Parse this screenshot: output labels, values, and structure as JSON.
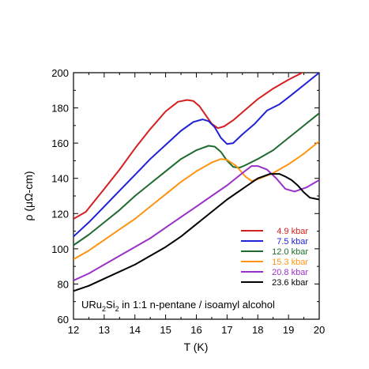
{
  "chart_data": {
    "type": "line",
    "title": "",
    "xlabel": "T (K)",
    "ylabel": "ρ (μΩ-cm)",
    "xlim": [
      12,
      20
    ],
    "ylim": [
      60,
      200
    ],
    "xticks": [
      12,
      13,
      14,
      15,
      16,
      17,
      18,
      19,
      20
    ],
    "yticks": [
      60,
      80,
      100,
      120,
      140,
      160,
      180,
      200
    ],
    "grid": false,
    "legend_position": "lower-right",
    "annotation": {
      "base": "URu",
      "sub1": "2",
      "mid": "Si",
      "sub2": "2",
      "rest": " in 1:1 n-pentane / isoamyl alcohol"
    },
    "series": [
      {
        "name": "4.9 kbar",
        "color": "#d62020",
        "x": [
          12.0,
          12.4,
          13.0,
          13.5,
          14.0,
          14.5,
          15.0,
          15.4,
          15.7,
          15.9,
          16.1,
          16.3,
          16.5,
          16.7,
          16.9,
          17.2,
          17.6,
          18.0,
          18.5,
          19.0,
          19.5,
          19.9
        ],
        "y": [
          117,
          121,
          134,
          145,
          157,
          168,
          178,
          183.5,
          184.5,
          184,
          181,
          176,
          171,
          168.5,
          169.5,
          173,
          179,
          185,
          191,
          196,
          200.5,
          204
        ]
      },
      {
        "name": "7.5 kbar",
        "color": "#1f22d6",
        "x": [
          12.0,
          12.5,
          13.0,
          13.5,
          14.0,
          14.5,
          15.0,
          15.5,
          15.9,
          16.2,
          16.4,
          16.6,
          16.8,
          17.0,
          17.2,
          17.5,
          17.9,
          18.3,
          18.7,
          19.0,
          19.5,
          20.0
        ],
        "y": [
          107,
          115,
          124,
          133,
          142,
          151,
          159,
          167,
          172,
          173.5,
          172.5,
          169,
          163,
          159.5,
          160,
          165,
          171,
          178.5,
          182,
          186,
          193,
          200
        ]
      },
      {
        "name": "12.0 kbar",
        "color": "#1f6b2e",
        "x": [
          12.0,
          12.5,
          13.0,
          13.5,
          14.0,
          14.5,
          15.0,
          15.5,
          16.0,
          16.4,
          16.6,
          16.8,
          17.0,
          17.2,
          17.4,
          17.6,
          18.0,
          18.5,
          19.0,
          19.5,
          20.0
        ],
        "y": [
          102,
          108,
          115,
          122,
          130,
          137,
          144,
          151,
          156,
          158.5,
          158,
          155,
          150,
          146.5,
          146,
          147.5,
          151,
          156,
          163,
          170,
          177
        ]
      },
      {
        "name": "15.3 kbar",
        "color": "#ff9410",
        "x": [
          12.0,
          12.5,
          13.0,
          13.5,
          14.0,
          14.5,
          15.0,
          15.5,
          16.0,
          16.5,
          16.8,
          17.0,
          17.3,
          17.6,
          17.8,
          18.0,
          18.5,
          19.0,
          19.5,
          20.0
        ],
        "y": [
          94,
          99,
          105,
          111,
          117,
          124,
          131,
          138,
          144,
          149,
          151,
          150.5,
          147,
          141,
          138.5,
          139.5,
          143,
          148,
          154,
          161
        ]
      },
      {
        "name": "20.8 kbar",
        "color": "#9b30c8",
        "x": [
          12.0,
          12.5,
          13.0,
          13.5,
          14.0,
          14.5,
          15.0,
          15.5,
          16.0,
          16.5,
          17.0,
          17.5,
          17.8,
          18.0,
          18.3,
          18.6,
          18.9,
          19.2,
          19.6,
          20.0
        ],
        "y": [
          82,
          86,
          91,
          96,
          101,
          106,
          112,
          118,
          124,
          130,
          136,
          143,
          147,
          147,
          145,
          140,
          134,
          132.5,
          135,
          139
        ]
      },
      {
        "name": "23.6 kbar",
        "color": "#000000",
        "x": [
          12.0,
          12.5,
          13.0,
          13.5,
          14.0,
          14.5,
          15.0,
          15.5,
          16.0,
          16.5,
          17.0,
          17.5,
          18.0,
          18.4,
          18.7,
          18.9,
          19.1,
          19.3,
          19.5,
          19.7,
          20.0
        ],
        "y": [
          76,
          79,
          83,
          87,
          91,
          96,
          101,
          107,
          114,
          121,
          128,
          134,
          140,
          142.5,
          142.5,
          141,
          139,
          136,
          132,
          129,
          128
        ]
      }
    ]
  }
}
